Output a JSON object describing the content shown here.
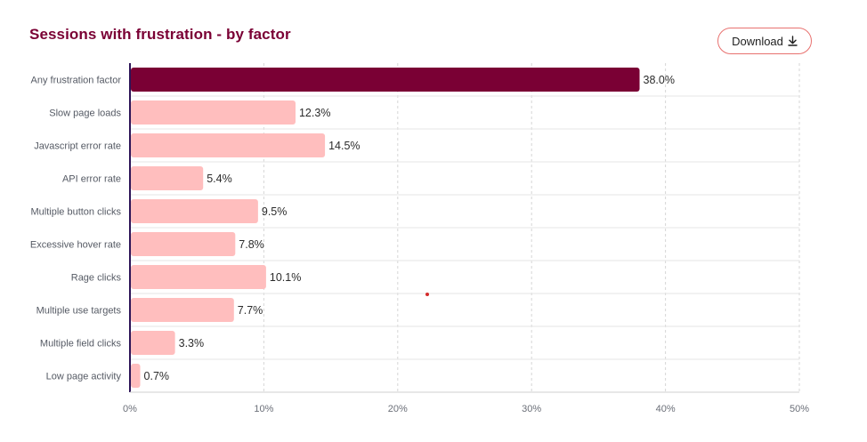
{
  "header": {
    "title": "Sessions with frustration - by factor",
    "download_label": "Download"
  },
  "colors": {
    "title": "#7a0034",
    "highlight_bar": "#7a0034",
    "bar": "#ffbebe",
    "axis": "#2d1457",
    "grid": "#d6d6d6"
  },
  "icons": {
    "download": "download-arrow-icon"
  },
  "chart_data": {
    "type": "bar",
    "orientation": "horizontal",
    "title": "Sessions with frustration - by factor",
    "xlabel": "",
    "ylabel": "",
    "xlim": [
      0,
      50
    ],
    "x_ticks": [
      0,
      10,
      20,
      30,
      40,
      50
    ],
    "x_tick_labels": [
      "0%",
      "10%",
      "20%",
      "30%",
      "40%",
      "50%"
    ],
    "grid": "vertical dashed",
    "categories": [
      "Any frustration factor",
      "Slow page loads",
      "Javascript error rate",
      "API error rate",
      "Multiple button clicks",
      "Excessive hover rate",
      "Rage clicks",
      "Multiple use targets",
      "Multiple field clicks",
      "Low page activity"
    ],
    "values": [
      38.0,
      12.3,
      14.5,
      5.4,
      9.5,
      7.8,
      10.1,
      7.7,
      3.3,
      0.7
    ],
    "value_labels": [
      "38.0%",
      "12.3%",
      "14.5%",
      "5.4%",
      "9.5%",
      "7.8%",
      "10.1%",
      "7.7%",
      "3.3%",
      "0.7%"
    ],
    "highlight_index": 0
  }
}
